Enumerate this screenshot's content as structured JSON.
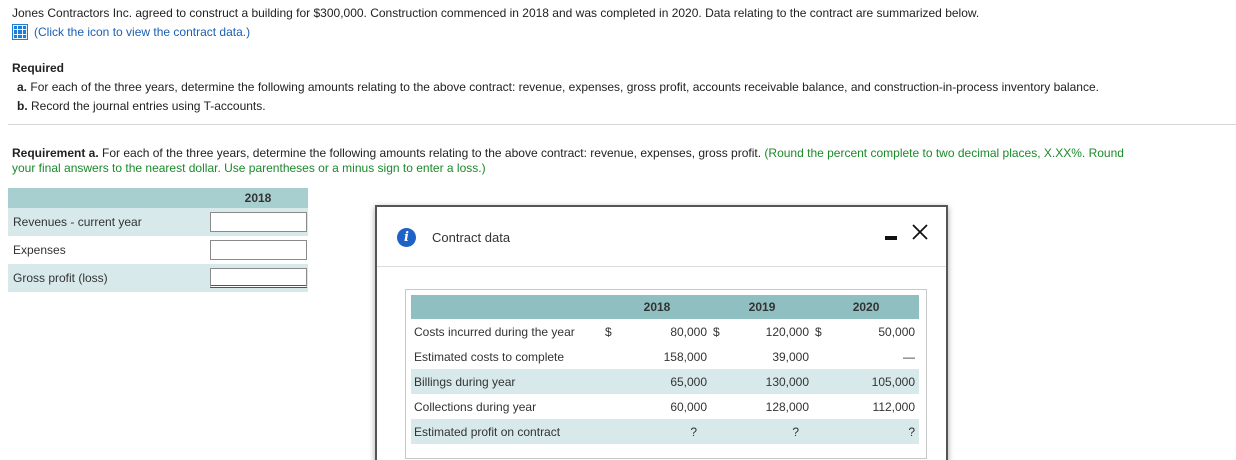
{
  "problem": {
    "intro": "Jones Contractors Inc. agreed to construct a building for $300,000. Construction commenced in 2018 and was completed in 2020. Data relating to the contract are summarized below.",
    "click_text": "(Click the icon to view the contract data.)",
    "required_title": "Required",
    "req_a_prefix": "a.",
    "req_a_text": "For each of the three years, determine the following amounts relating to the above contract: revenue, expenses, gross profit, accounts receivable balance, and construction-in-process inventory balance.",
    "req_b_prefix": "b.",
    "req_b_text": "Record the journal entries using T-accounts."
  },
  "requirement": {
    "label": "Requirement a.",
    "text": " For each of the three years, determine the following amounts relating to the above contract: revenue, expenses, gross profit.",
    "note_line1": " (Round the percent complete to two decimal places, X.XX%. Round",
    "note_line2": "your final answers to the nearest dollar. Use parentheses or a minus sign to enter a loss.)"
  },
  "answer_table": {
    "year": "2018",
    "rows": [
      {
        "label": "Revenues - current year",
        "value": ""
      },
      {
        "label": "Expenses",
        "value": ""
      },
      {
        "label": "Gross profit (loss)",
        "value": ""
      }
    ]
  },
  "dialog": {
    "title": "Contract data",
    "years": [
      "2018",
      "2019",
      "2020"
    ],
    "rows": [
      {
        "label": "Costs incurred during the year",
        "d1": "$",
        "v1": "80,000",
        "d2": "$",
        "v2": "120,000",
        "d3": "$",
        "v3": "50,000"
      },
      {
        "label": "Estimated costs to complete",
        "v1": "158,000",
        "v2": "39,000",
        "v3": "—"
      },
      {
        "label": "Billings during year",
        "v1": "65,000",
        "v2": "130,000",
        "v3": "105,000"
      },
      {
        "label": "Collections during year",
        "v1": "60,000",
        "v2": "128,000",
        "v3": "112,000"
      },
      {
        "label": "Estimated profit on contract",
        "v1": "?",
        "v2": "?",
        "v3": "?"
      }
    ]
  },
  "colors": {
    "link_blue": "#1a5fb4",
    "green_note": "#1a8a2a",
    "header_teal": "#8fbfc0",
    "row_alt": "#d7e9ea"
  }
}
